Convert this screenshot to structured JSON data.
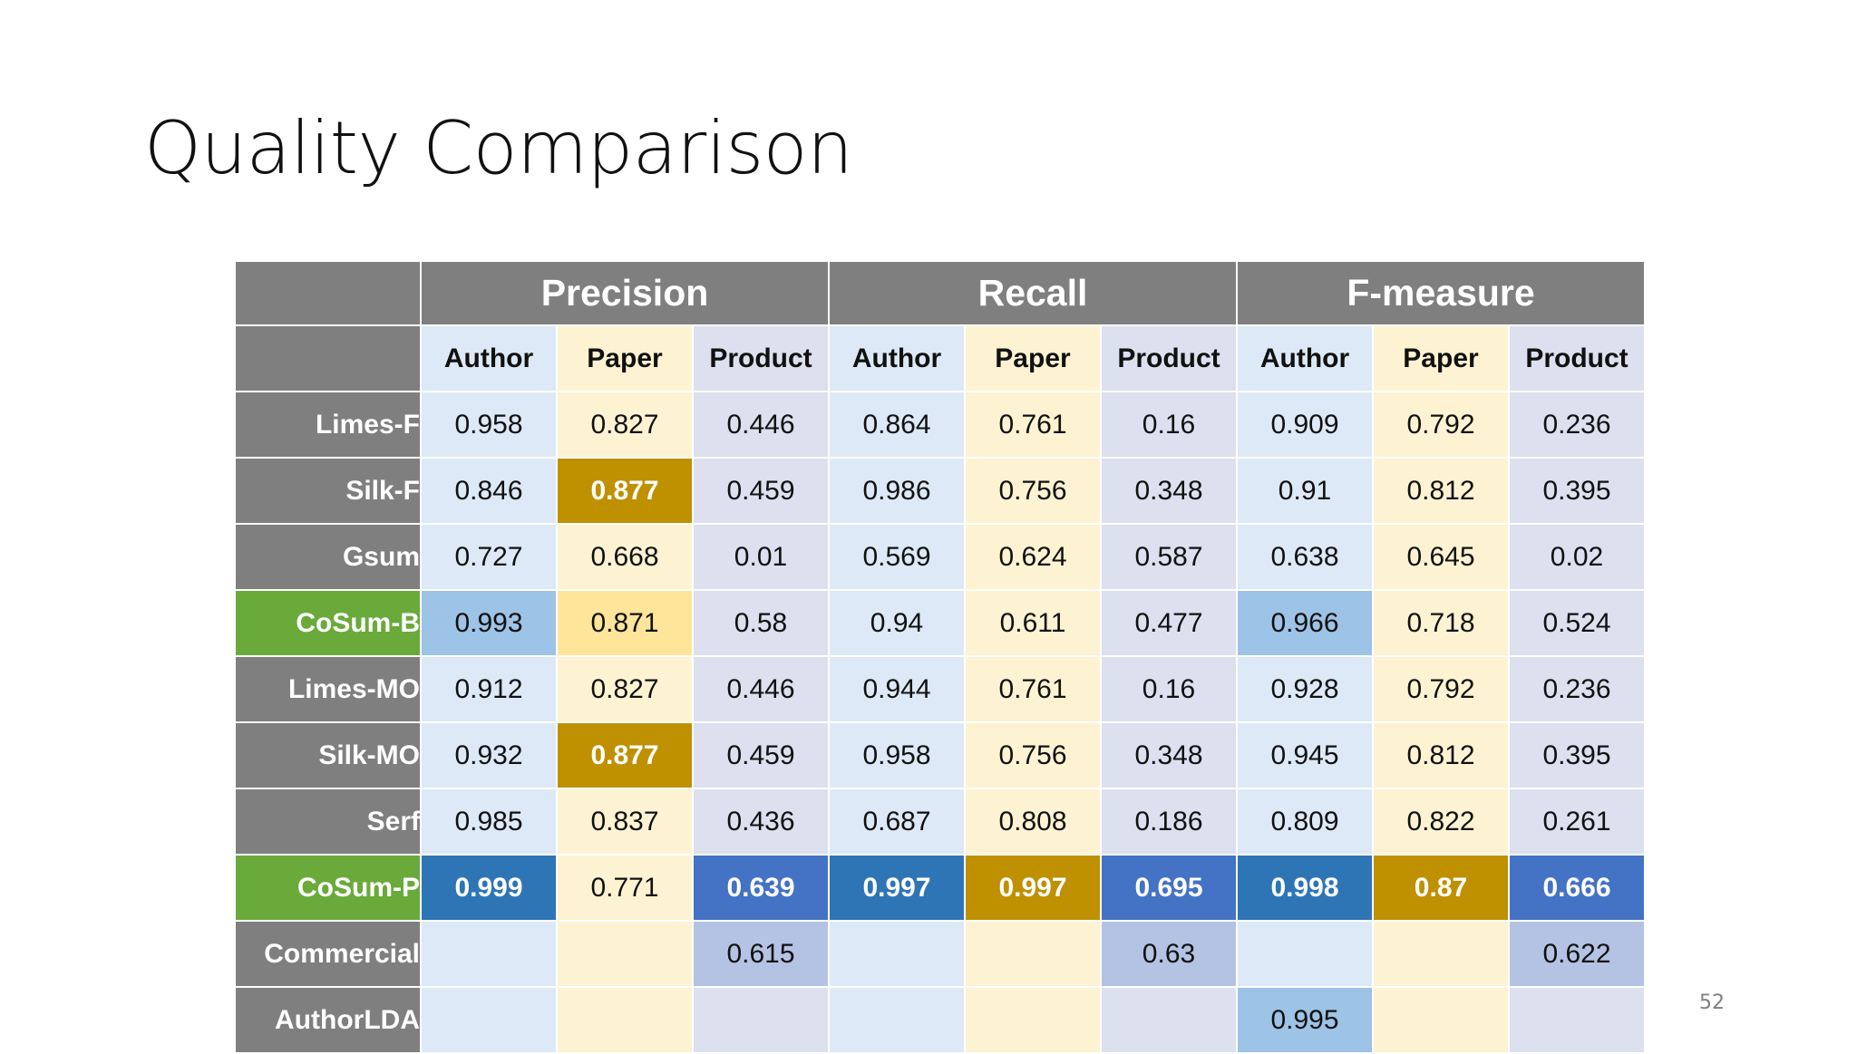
{
  "title": "Quality Comparison",
  "slide_number": "52",
  "table": {
    "groups": [
      "Precision",
      "Recall",
      "F-measure"
    ],
    "metrics": [
      "Author",
      "Paper",
      "Product",
      "Author",
      "Paper",
      "Product",
      "Author",
      "Paper",
      "Product"
    ],
    "rows": [
      {
        "label": "Limes-F",
        "highlight_label": false,
        "values": [
          "0.958",
          "0.827",
          "0.446",
          "0.864",
          "0.761",
          "0.16",
          "0.909",
          "0.792",
          "0.236"
        ],
        "styles": [
          "",
          "",
          "",
          "",
          "",
          "",
          "",
          "",
          ""
        ]
      },
      {
        "label": "Silk-F",
        "highlight_label": false,
        "values": [
          "0.846",
          "0.877",
          "0.459",
          "0.986",
          "0.756",
          "0.348",
          "0.91",
          "0.812",
          "0.395"
        ],
        "styles": [
          "",
          "gold",
          "",
          "",
          "",
          "",
          "",
          "",
          ""
        ]
      },
      {
        "label": "Gsum",
        "highlight_label": false,
        "values": [
          "0.727",
          "0.668",
          "0.01",
          "0.569",
          "0.624",
          "0.587",
          "0.638",
          "0.645",
          "0.02"
        ],
        "styles": [
          "",
          "",
          "",
          "",
          "",
          "",
          "",
          "",
          ""
        ]
      },
      {
        "label": "CoSum-B",
        "highlight_label": true,
        "values": [
          "0.993",
          "0.871",
          "0.58",
          "0.94",
          "0.611",
          "0.477",
          "0.966",
          "0.718",
          "0.524"
        ],
        "styles": [
          "lightblue",
          "lightyellow",
          "",
          "",
          "",
          "",
          "lightblue",
          "",
          ""
        ]
      },
      {
        "label": "Limes-MO",
        "highlight_label": false,
        "values": [
          "0.912",
          "0.827",
          "0.446",
          "0.944",
          "0.761",
          "0.16",
          "0.928",
          "0.792",
          "0.236"
        ],
        "styles": [
          "",
          "",
          "",
          "",
          "",
          "",
          "",
          "",
          ""
        ]
      },
      {
        "label": "Silk-MO",
        "highlight_label": false,
        "values": [
          "0.932",
          "0.877",
          "0.459",
          "0.958",
          "0.756",
          "0.348",
          "0.945",
          "0.812",
          "0.395"
        ],
        "styles": [
          "",
          "gold",
          "",
          "",
          "",
          "",
          "",
          "",
          ""
        ]
      },
      {
        "label": "Serf",
        "highlight_label": false,
        "values": [
          "0.985",
          "0.837",
          "0.436",
          "0.687",
          "0.808",
          "0.186",
          "0.809",
          "0.822",
          "0.261"
        ],
        "styles": [
          "",
          "",
          "",
          "",
          "",
          "",
          "",
          "",
          ""
        ]
      },
      {
        "label": "CoSum-P",
        "highlight_label": true,
        "values": [
          "0.999",
          "0.771",
          "0.639",
          "0.997",
          "0.997",
          "0.695",
          "0.998",
          "0.87",
          "0.666"
        ],
        "styles": [
          "blue",
          "",
          "royal",
          "blue",
          "gold",
          "royal",
          "blue",
          "gold",
          "royal"
        ]
      },
      {
        "label": "Commercial",
        "highlight_label": false,
        "values": [
          "",
          "",
          "0.615",
          "",
          "",
          "0.63",
          "",
          "",
          "0.622"
        ],
        "styles": [
          "",
          "",
          "lavender",
          "",
          "",
          "lavender",
          "",
          "",
          "lavender"
        ]
      },
      {
        "label": "AuthorLDA",
        "highlight_label": false,
        "values": [
          "",
          "",
          "",
          "",
          "",
          "",
          "0.995",
          "",
          ""
        ],
        "styles": [
          "",
          "",
          "",
          "",
          "",
          "",
          "lightblue",
          "",
          ""
        ]
      }
    ]
  }
}
